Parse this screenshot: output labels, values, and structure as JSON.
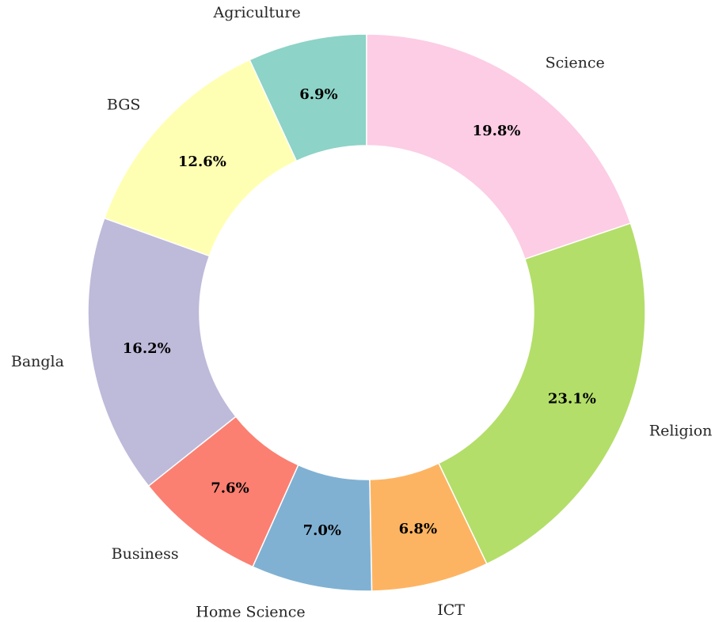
{
  "chart_data": {
    "type": "pie",
    "categories": [
      "Agriculture",
      "BGS",
      "Bangla",
      "Business",
      "Home Science",
      "ICT",
      "Religion",
      "Science"
    ],
    "values": [
      6.9,
      12.6,
      16.2,
      7.6,
      7.0,
      6.8,
      23.1,
      19.8
    ],
    "value_labels": [
      "6.9%",
      "12.6%",
      "16.2%",
      "7.6%",
      "7.0%",
      "6.8%",
      "23.1%",
      "19.8%"
    ],
    "colors": [
      "#8dd3c7",
      "#ffffb3",
      "#bebada",
      "#fb8072",
      "#80b1d3",
      "#fdb462",
      "#b3de69",
      "#fccde5"
    ]
  }
}
